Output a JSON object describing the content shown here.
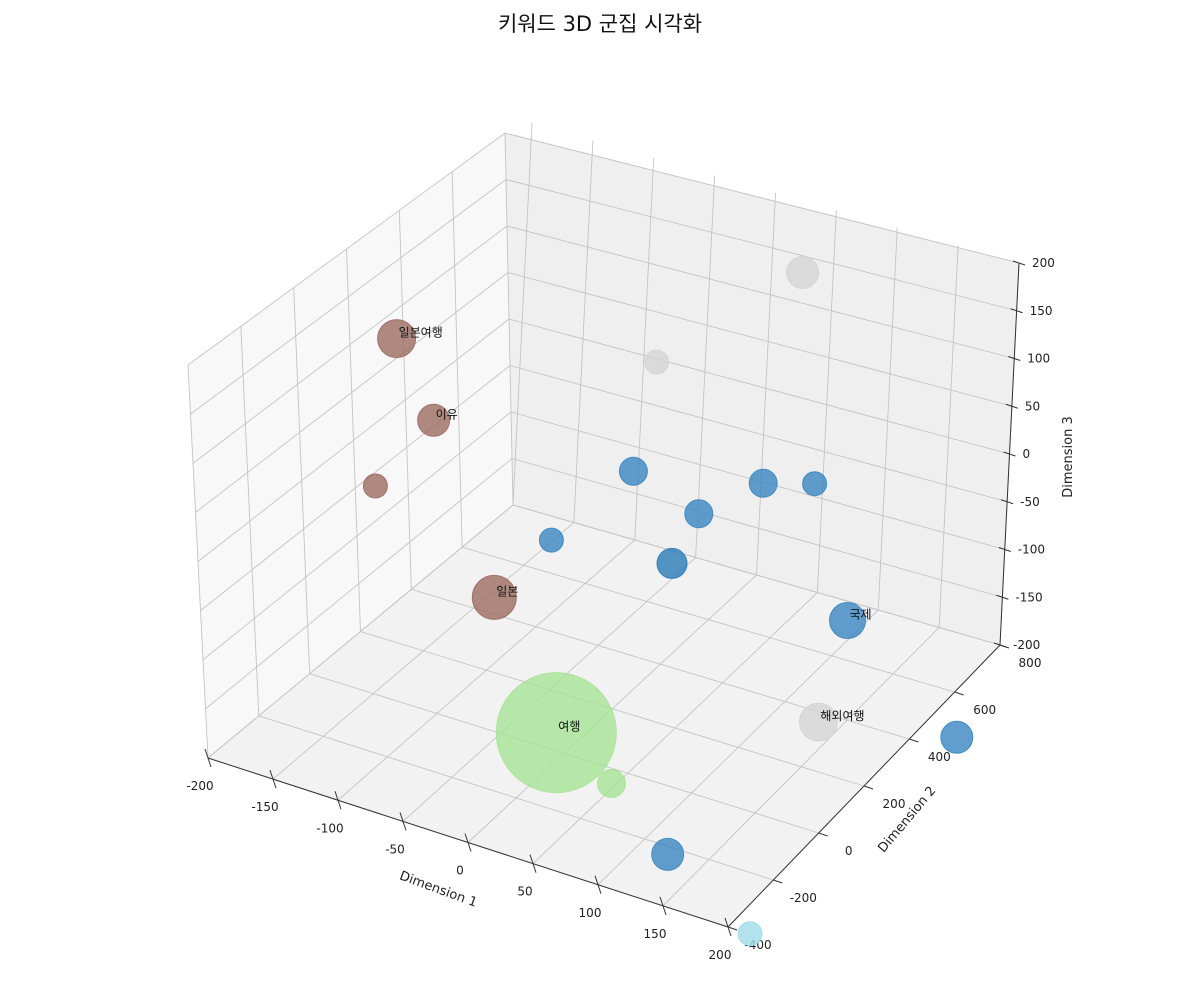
{
  "chart_data": {
    "type": "scatter",
    "title": "키워드 3D 군집 시각화",
    "xlabel": "Dimension 1",
    "ylabel": "Dimension 2",
    "zlabel": "Dimension 3",
    "xlim": [
      -200,
      200
    ],
    "ylim": [
      -400,
      800
    ],
    "zlim": [
      -200,
      200
    ],
    "xticks": [
      -200,
      -150,
      -100,
      -50,
      0,
      50,
      100,
      150,
      200
    ],
    "yticks": [
      -400,
      -200,
      0,
      200,
      400,
      600,
      800
    ],
    "zticks": [
      -200,
      -150,
      -100,
      -50,
      0,
      50,
      100,
      150,
      200
    ],
    "grid": true,
    "points": [
      {
        "label": "",
        "color": "#d4d4d4",
        "x": 40,
        "y": 640,
        "z": 185,
        "size": 16
      },
      {
        "label": "일본여행",
        "color": "#9c6c62",
        "x": -180,
        "y": 180,
        "z": 120,
        "size": 19
      },
      {
        "label": "",
        "color": "#d4d4d4",
        "x": -45,
        "y": 520,
        "z": 80,
        "size": 12
      },
      {
        "label": "",
        "color": "#3a86c0",
        "x": 105,
        "y": 380,
        "z": 50,
        "size": 12
      },
      {
        "label": "",
        "color": "#3a86c0",
        "x": 55,
        "y": 440,
        "z": 15,
        "size": 14
      },
      {
        "label": "이유",
        "color": "#9c6c62",
        "x": -160,
        "y": 240,
        "z": 30,
        "size": 16
      },
      {
        "label": "",
        "color": "#3a86c0",
        "x": -40,
        "y": 420,
        "z": -10,
        "size": 14
      },
      {
        "label": "",
        "color": "#3a86c0",
        "x": 0,
        "y": 480,
        "z": -50,
        "size": 14
      },
      {
        "label": "",
        "color": "#9c6c62",
        "x": -185,
        "y": 150,
        "z": -30,
        "size": 12
      },
      {
        "label": "",
        "color": "#3a86c0",
        "x": -70,
        "y": 260,
        "z": -60,
        "size": 12
      },
      {
        "label": "",
        "color": "#2a7ab8",
        "x": 0,
        "y": 380,
        "z": -80,
        "size": 15
      },
      {
        "label": "국제",
        "color": "#3a86c0",
        "x": 135,
        "y": 380,
        "z": -80,
        "size": 18
      },
      {
        "label": "일본",
        "color": "#9c6c62",
        "x": -100,
        "y": 200,
        "z": -120,
        "size": 22
      },
      {
        "label": "해외여행",
        "color": "#d4d4d4",
        "x": 150,
        "y": 200,
        "z": -140,
        "size": 19
      },
      {
        "label": "",
        "color": "#3a86c0",
        "x": 200,
        "y": 500,
        "z": -200,
        "size": 16
      },
      {
        "label": "여행",
        "color": "#a8e296",
        "x": 0,
        "y": -60,
        "z": -160,
        "size": 60
      },
      {
        "label": "",
        "color": "#a8e296",
        "x": 40,
        "y": -40,
        "z": -200,
        "size": 14
      },
      {
        "label": "",
        "color": "#3a86c0",
        "x": 100,
        "y": -120,
        "z": -230,
        "size": 16
      },
      {
        "label": "",
        "color": "#9fdbe7",
        "x": 180,
        "y": -200,
        "z": -260,
        "size": 12
      }
    ]
  }
}
